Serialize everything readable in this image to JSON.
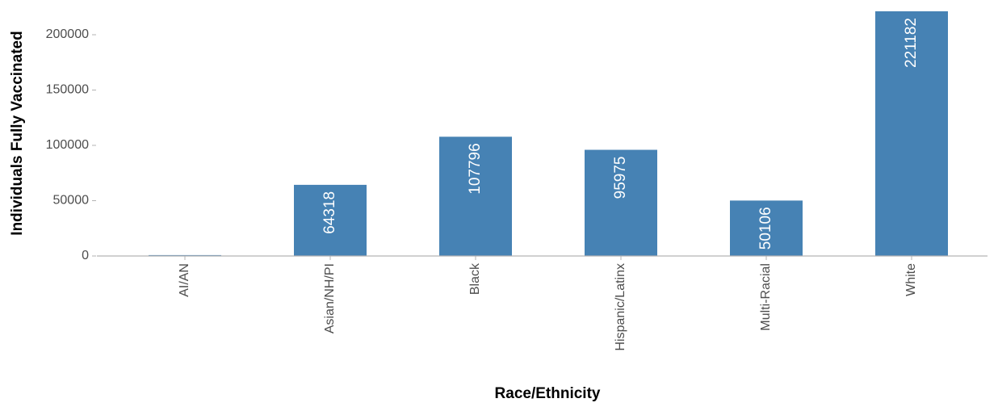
{
  "chart_data": {
    "type": "bar",
    "x_label": "Race/Ethnicity",
    "y_label": "Individuals Fully Vaccinated",
    "categories": [
      "AI/AN",
      "Asian/NH/PI",
      "Black",
      "Hispanic/Latinx",
      "Multi-Racial",
      "White"
    ],
    "values": [
      800,
      64318,
      107796,
      95975,
      50106,
      221182
    ],
    "color": "#4682b4",
    "ylim": [
      0,
      221182
    ],
    "yticks": [
      0,
      50000,
      100000,
      150000,
      200000
    ]
  }
}
